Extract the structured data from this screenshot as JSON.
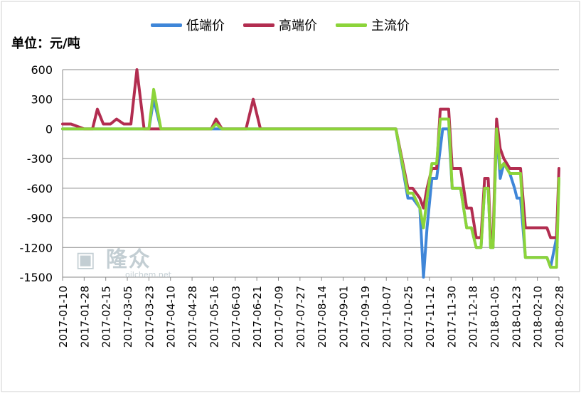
{
  "unit_label": "单位：元/吨",
  "watermark": {
    "brand": "隆众",
    "site": "oilchem.net"
  },
  "chart_data": {
    "type": "line",
    "ylim": [
      -1500,
      600
    ],
    "yticks": [
      600,
      300,
      0,
      -300,
      -600,
      -900,
      -1200,
      -1500
    ],
    "xlim": [
      "2017-01-10",
      "2018-02-28"
    ],
    "xticks": [
      "2017-01-10",
      "2017-01-28",
      "2017-02-15",
      "2017-03-05",
      "2017-03-23",
      "2017-04-10",
      "2017-04-28",
      "2017-05-16",
      "2017-06-03",
      "2017-06-21",
      "2017-07-09",
      "2017-07-27",
      "2017-08-14",
      "2017-09-01",
      "2017-09-19",
      "2017-10-07",
      "2017-10-25",
      "2017-11-12",
      "2017-11-30",
      "2017-12-18",
      "2018-01-05",
      "2018-01-23",
      "2018-02-10",
      "2018-02-28"
    ],
    "grid": true,
    "legend_position": "top",
    "series": [
      {
        "name": "低端价",
        "color": "#3f86d8",
        "points": [
          [
            "2017-01-10",
            0
          ],
          [
            "2017-03-23",
            0
          ],
          [
            "2017-03-27",
            300
          ],
          [
            "2017-04-02",
            0
          ],
          [
            "2017-10-15",
            0
          ],
          [
            "2017-10-25",
            -700
          ],
          [
            "2017-10-29",
            -700
          ],
          [
            "2017-11-04",
            -800
          ],
          [
            "2017-11-07",
            -1500
          ],
          [
            "2017-11-10",
            -1000
          ],
          [
            "2017-11-14",
            -500
          ],
          [
            "2017-11-18",
            -500
          ],
          [
            "2017-11-21",
            -200
          ],
          [
            "2017-11-23",
            0
          ],
          [
            "2017-11-28",
            0
          ],
          [
            "2017-12-01",
            -600
          ],
          [
            "2017-12-08",
            -600
          ],
          [
            "2017-12-13",
            -1000
          ],
          [
            "2017-12-17",
            -1000
          ],
          [
            "2017-12-21",
            -1200
          ],
          [
            "2017-12-25",
            -1200
          ],
          [
            "2017-12-28",
            -600
          ],
          [
            "2017-12-31",
            -600
          ],
          [
            "2018-01-02",
            -1200
          ],
          [
            "2018-01-04",
            -1200
          ],
          [
            "2018-01-07",
            0
          ],
          [
            "2018-01-10",
            -500
          ],
          [
            "2018-01-13",
            -350
          ],
          [
            "2018-01-18",
            -450
          ],
          [
            "2018-01-22",
            -600
          ],
          [
            "2018-01-24",
            -700
          ],
          [
            "2018-01-27",
            -700
          ],
          [
            "2018-01-31",
            -1300
          ],
          [
            "2018-02-18",
            -1300
          ],
          [
            "2018-02-21",
            -1400
          ],
          [
            "2018-02-26",
            -1100
          ],
          [
            "2018-02-28",
            -500
          ]
        ]
      },
      {
        "name": "高端价",
        "color": "#b22d50",
        "points": [
          [
            "2017-01-10",
            50
          ],
          [
            "2017-01-17",
            50
          ],
          [
            "2017-01-28",
            0
          ],
          [
            "2017-02-04",
            0
          ],
          [
            "2017-02-08",
            200
          ],
          [
            "2017-02-13",
            50
          ],
          [
            "2017-02-19",
            50
          ],
          [
            "2017-02-24",
            100
          ],
          [
            "2017-03-02",
            50
          ],
          [
            "2017-03-08",
            50
          ],
          [
            "2017-03-13",
            600
          ],
          [
            "2017-03-19",
            0
          ],
          [
            "2017-05-14",
            0
          ],
          [
            "2017-05-18",
            100
          ],
          [
            "2017-05-23",
            0
          ],
          [
            "2017-06-12",
            0
          ],
          [
            "2017-06-18",
            300
          ],
          [
            "2017-06-24",
            0
          ],
          [
            "2017-10-15",
            0
          ],
          [
            "2017-10-25",
            -600
          ],
          [
            "2017-10-29",
            -600
          ],
          [
            "2017-11-04",
            -700
          ],
          [
            "2017-11-07",
            -800
          ],
          [
            "2017-11-10",
            -600
          ],
          [
            "2017-11-14",
            -400
          ],
          [
            "2017-11-18",
            -400
          ],
          [
            "2017-11-21",
            200
          ],
          [
            "2017-11-23",
            200
          ],
          [
            "2017-11-28",
            200
          ],
          [
            "2017-12-01",
            -400
          ],
          [
            "2017-12-08",
            -400
          ],
          [
            "2017-12-13",
            -800
          ],
          [
            "2017-12-17",
            -800
          ],
          [
            "2017-12-21",
            -1100
          ],
          [
            "2017-12-25",
            -1100
          ],
          [
            "2017-12-28",
            -500
          ],
          [
            "2017-12-31",
            -500
          ],
          [
            "2018-01-02",
            -1100
          ],
          [
            "2018-01-04",
            -1100
          ],
          [
            "2018-01-07",
            100
          ],
          [
            "2018-01-10",
            -200
          ],
          [
            "2018-01-13",
            -300
          ],
          [
            "2018-01-18",
            -400
          ],
          [
            "2018-01-22",
            -400
          ],
          [
            "2018-01-24",
            -400
          ],
          [
            "2018-01-27",
            -400
          ],
          [
            "2018-01-31",
            -1000
          ],
          [
            "2018-02-18",
            -1000
          ],
          [
            "2018-02-21",
            -1100
          ],
          [
            "2018-02-26",
            -1100
          ],
          [
            "2018-02-28",
            -400
          ]
        ]
      },
      {
        "name": "主流价",
        "color": "#8cd43a",
        "points": [
          [
            "2017-01-10",
            0
          ],
          [
            "2017-03-23",
            0
          ],
          [
            "2017-03-27",
            400
          ],
          [
            "2017-04-02",
            0
          ],
          [
            "2017-05-14",
            0
          ],
          [
            "2017-05-18",
            50
          ],
          [
            "2017-05-23",
            0
          ],
          [
            "2017-10-15",
            0
          ],
          [
            "2017-10-25",
            -650
          ],
          [
            "2017-10-29",
            -650
          ],
          [
            "2017-11-04",
            -800
          ],
          [
            "2017-11-07",
            -1000
          ],
          [
            "2017-11-10",
            -700
          ],
          [
            "2017-11-14",
            -350
          ],
          [
            "2017-11-18",
            -350
          ],
          [
            "2017-11-21",
            100
          ],
          [
            "2017-11-23",
            100
          ],
          [
            "2017-11-28",
            100
          ],
          [
            "2017-12-01",
            -600
          ],
          [
            "2017-12-08",
            -600
          ],
          [
            "2017-12-13",
            -1000
          ],
          [
            "2017-12-17",
            -1000
          ],
          [
            "2017-12-21",
            -1200
          ],
          [
            "2017-12-25",
            -1200
          ],
          [
            "2017-12-28",
            -600
          ],
          [
            "2017-12-31",
            -600
          ],
          [
            "2018-01-02",
            -1200
          ],
          [
            "2018-01-04",
            -1200
          ],
          [
            "2018-01-07",
            0
          ],
          [
            "2018-01-10",
            -400
          ],
          [
            "2018-01-13",
            -350
          ],
          [
            "2018-01-18",
            -450
          ],
          [
            "2018-01-22",
            -450
          ],
          [
            "2018-01-24",
            -450
          ],
          [
            "2018-01-27",
            -450
          ],
          [
            "2018-01-31",
            -1300
          ],
          [
            "2018-02-18",
            -1300
          ],
          [
            "2018-02-21",
            -1400
          ],
          [
            "2018-02-26",
            -1400
          ],
          [
            "2018-02-28",
            -500
          ]
        ]
      }
    ]
  }
}
